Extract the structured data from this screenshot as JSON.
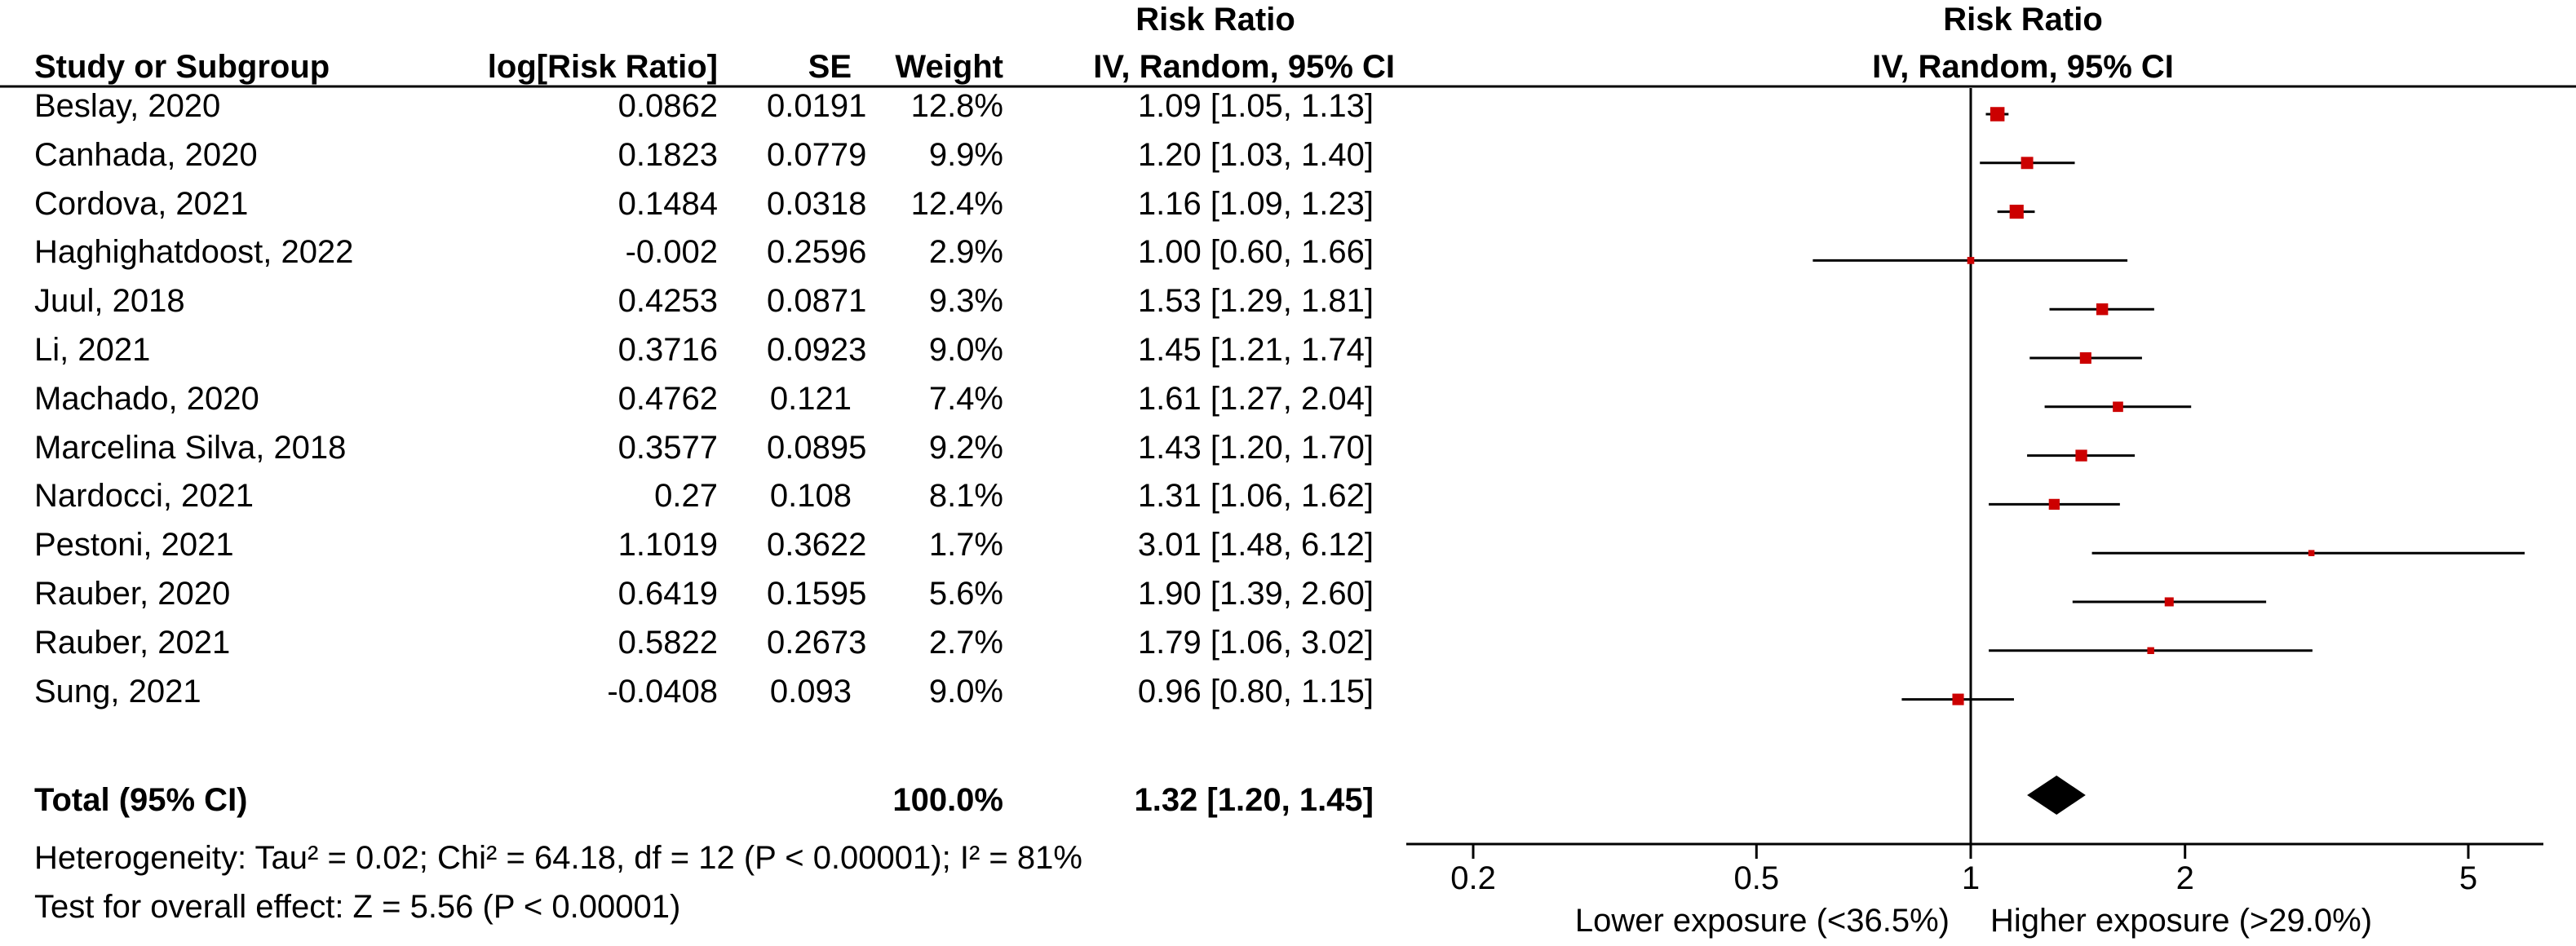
{
  "header": {
    "top_left_col": "Risk Ratio",
    "top_plot": "Risk Ratio",
    "study": "Study or Subgroup",
    "logrr": "log[Risk Ratio]",
    "se": "SE",
    "weight": "Weight",
    "ci": "IV, Random, 95% CI",
    "plot_ci": "IV, Random, 95% CI"
  },
  "rows": [
    {
      "study": "Beslay, 2020",
      "logrr": "0.0862",
      "se": "0.0191",
      "weight": "12.8%",
      "ci": "1.09 [1.05, 1.13]"
    },
    {
      "study": "Canhada, 2020",
      "logrr": "0.1823",
      "se": "0.0779",
      "weight": "9.9%",
      "ci": "1.20 [1.03, 1.40]"
    },
    {
      "study": "Cordova, 2021",
      "logrr": "0.1484",
      "se": "0.0318",
      "weight": "12.4%",
      "ci": "1.16 [1.09, 1.23]"
    },
    {
      "study": "Haghighatdoost, 2022",
      "logrr": "-0.002",
      "se": "0.2596",
      "weight": "2.9%",
      "ci": "1.00 [0.60, 1.66]"
    },
    {
      "study": "Juul, 2018",
      "logrr": "0.4253",
      "se": "0.0871",
      "weight": "9.3%",
      "ci": "1.53 [1.29, 1.81]"
    },
    {
      "study": "Li, 2021",
      "logrr": "0.3716",
      "se": "0.0923",
      "weight": "9.0%",
      "ci": "1.45 [1.21, 1.74]"
    },
    {
      "study": "Machado, 2020",
      "logrr": "0.4762",
      "se": "0.121",
      "weight": "7.4%",
      "ci": "1.61 [1.27, 2.04]"
    },
    {
      "study": "Marcelina Silva, 2018",
      "logrr": "0.3577",
      "se": "0.0895",
      "weight": "9.2%",
      "ci": "1.43 [1.20, 1.70]"
    },
    {
      "study": "Nardocci, 2021",
      "logrr": "0.27",
      "se": "0.108",
      "weight": "8.1%",
      "ci": "1.31 [1.06, 1.62]"
    },
    {
      "study": "Pestoni, 2021",
      "logrr": "1.1019",
      "se": "0.3622",
      "weight": "1.7%",
      "ci": "3.01 [1.48, 6.12]"
    },
    {
      "study": "Rauber, 2020",
      "logrr": "0.6419",
      "se": "0.1595",
      "weight": "5.6%",
      "ci": "1.90 [1.39, 2.60]"
    },
    {
      "study": "Rauber, 2021",
      "logrr": "0.5822",
      "se": "0.2673",
      "weight": "2.7%",
      "ci": "1.79 [1.06, 3.02]"
    },
    {
      "study": "Sung, 2021",
      "logrr": "-0.0408",
      "se": "0.093",
      "weight": "9.0%",
      "ci": "0.96 [0.80, 1.15]"
    }
  ],
  "total": {
    "label": "Total (95% CI)",
    "weight": "100.0%",
    "ci": "1.32 [1.20, 1.45]"
  },
  "footer": {
    "heterogeneity": "Heterogeneity: Tau² = 0.02; Chi² = 64.18, df = 12 (P < 0.00001); I² = 81%",
    "overall": "Test for overall effect: Z = 5.56 (P < 0.00001)"
  },
  "colors": {
    "marker": "#cc0000",
    "line": "#000000"
  },
  "chart_data": {
    "type": "scatter",
    "xscale": "log",
    "xlim": [
      0.17,
      6.0
    ],
    "xticks": [
      0.2,
      0.5,
      1,
      2,
      5
    ],
    "xtick_labels": [
      "0.2",
      "0.5",
      "1",
      "2",
      "5"
    ],
    "xlabel_left": "Lower exposure (<36.5%)",
    "xlabel_right": "Higher exposure (>29.0%)",
    "reference_line": 1,
    "estimates": [
      1.09,
      1.2,
      1.16,
      1.0,
      1.53,
      1.45,
      1.61,
      1.43,
      1.31,
      3.01,
      1.9,
      1.79,
      0.96
    ],
    "lower": [
      1.05,
      1.03,
      1.09,
      0.6,
      1.29,
      1.21,
      1.27,
      1.2,
      1.06,
      1.48,
      1.39,
      1.06,
      0.8
    ],
    "upper": [
      1.13,
      1.4,
      1.23,
      1.66,
      1.81,
      1.74,
      2.04,
      1.7,
      1.62,
      6.12,
      2.6,
      3.02,
      1.15
    ],
    "weights": [
      12.8,
      9.9,
      12.4,
      2.9,
      9.3,
      9.0,
      7.4,
      9.2,
      8.1,
      1.7,
      5.6,
      2.7,
      9.0
    ],
    "pooled": {
      "estimate": 1.32,
      "lower": 1.2,
      "upper": 1.45
    }
  }
}
